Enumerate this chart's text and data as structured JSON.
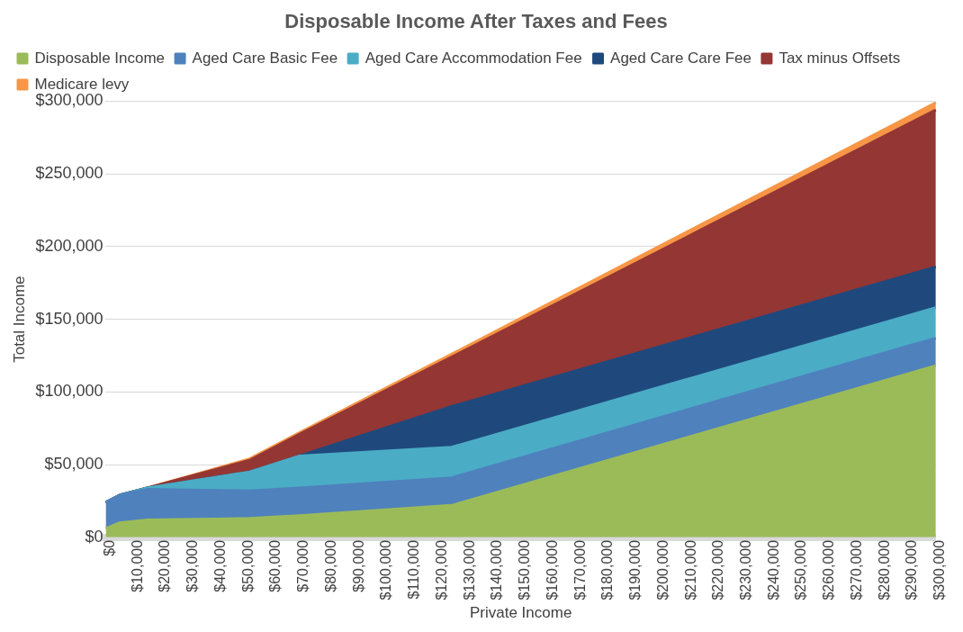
{
  "chart_data": {
    "type": "area",
    "title": "Disposable Income After Taxes and Fees",
    "xlabel": "Private Income",
    "ylabel": "Total Income",
    "stacked": true,
    "legend": "top",
    "grid": "y",
    "x": [
      0,
      5000,
      15000,
      52000,
      70000,
      125000,
      300000
    ],
    "series": [
      {
        "name": "Disposable Income",
        "color": "#9bbb59",
        "values": [
          6000,
          10000,
          12000,
          13000,
          15000,
          22000,
          118000
        ]
      },
      {
        "name": "Aged Care Basic Fee",
        "color": "#4f81bd",
        "values": [
          18000,
          19000,
          21000,
          19000,
          19000,
          19000,
          19000
        ]
      },
      {
        "name": "Aged Care Accommodation Fee",
        "color": "#4bacc6",
        "values": [
          0,
          0,
          1000,
          13000,
          22000,
          21000,
          21000
        ]
      },
      {
        "name": "Aged Care Care Fee",
        "color": "#1f497d",
        "values": [
          0,
          0,
          0,
          0,
          0,
          28000,
          28000
        ]
      },
      {
        "name": "Tax minus Offsets",
        "color": "#943634",
        "values": [
          0,
          0,
          0,
          8000,
          15000,
          34000,
          108000
        ]
      },
      {
        "name": "Medicare levy",
        "color": "#f79646",
        "values": [
          0,
          0,
          0,
          1000,
          1000,
          2000,
          5000
        ]
      }
    ],
    "xlim": [
      0,
      300000
    ],
    "xticks": [
      {
        "value": 0,
        "label": "$0"
      },
      {
        "value": 10000,
        "label": "$10,000"
      },
      {
        "value": 20000,
        "label": "$20,000"
      },
      {
        "value": 30000,
        "label": "$30,000"
      },
      {
        "value": 40000,
        "label": "$40,000"
      },
      {
        "value": 50000,
        "label": "$50,000"
      },
      {
        "value": 60000,
        "label": "$60,000"
      },
      {
        "value": 70000,
        "label": "$70,000"
      },
      {
        "value": 80000,
        "label": "$80,000"
      },
      {
        "value": 90000,
        "label": "$90,000"
      },
      {
        "value": 100000,
        "label": "$100,000"
      },
      {
        "value": 110000,
        "label": "$110,000"
      },
      {
        "value": 120000,
        "label": "$120,000"
      },
      {
        "value": 130000,
        "label": "$130,000"
      },
      {
        "value": 140000,
        "label": "$140,000"
      },
      {
        "value": 150000,
        "label": "$150,000"
      },
      {
        "value": 160000,
        "label": "$160,000"
      },
      {
        "value": 170000,
        "label": "$170,000"
      },
      {
        "value": 180000,
        "label": "$180,000"
      },
      {
        "value": 190000,
        "label": "$190,000"
      },
      {
        "value": 200000,
        "label": "$200,000"
      },
      {
        "value": 210000,
        "label": "$210,000"
      },
      {
        "value": 220000,
        "label": "$220,000"
      },
      {
        "value": 230000,
        "label": "$230,000"
      },
      {
        "value": 240000,
        "label": "$240,000"
      },
      {
        "value": 250000,
        "label": "$250,000"
      },
      {
        "value": 260000,
        "label": "$260,000"
      },
      {
        "value": 270000,
        "label": "$270,000"
      },
      {
        "value": 280000,
        "label": "$280,000"
      },
      {
        "value": 290000,
        "label": "$290,000"
      },
      {
        "value": 300000,
        "label": "$300,000"
      }
    ],
    "ylim": [
      0,
      300000
    ],
    "yticks": [
      {
        "value": 0,
        "label": "$0"
      },
      {
        "value": 50000,
        "label": "$50,000"
      },
      {
        "value": 100000,
        "label": "$100,000"
      },
      {
        "value": 150000,
        "label": "$150,000"
      },
      {
        "value": 200000,
        "label": "$200,000"
      },
      {
        "value": 250000,
        "label": "$250,000"
      },
      {
        "value": 300000,
        "label": "$300,000"
      }
    ]
  }
}
